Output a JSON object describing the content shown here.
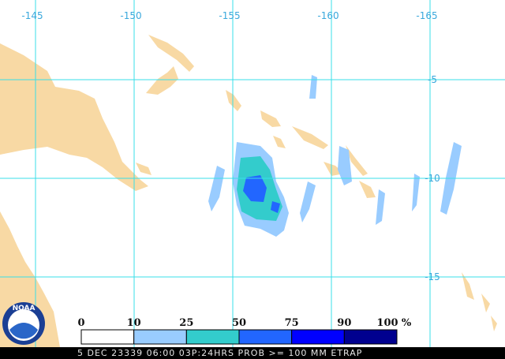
{
  "map": {
    "lon_labels": [
      -145,
      -150,
      -155,
      -160,
      -165
    ],
    "lat_labels": [
      -5,
      -10,
      -15
    ]
  },
  "legend": {
    "ticks": [
      0,
      10,
      25,
      50,
      75,
      90,
      100
    ],
    "unit": "%",
    "colors": [
      "#ffffff",
      "#99ccff",
      "#33cccc",
      "#2266ff",
      "#0000ff",
      "#00008f"
    ]
  },
  "logo": "NOAA",
  "caption": "5 DEC 23339 06:00 03P:24HRS PROB >= 100 MM ETRAP"
}
